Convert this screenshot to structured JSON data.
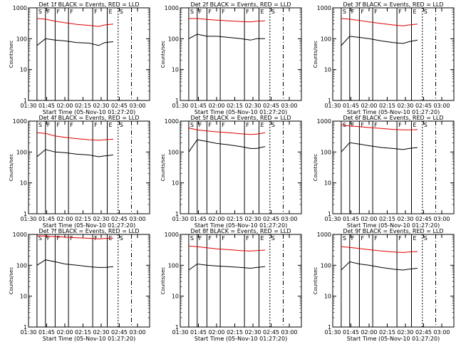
{
  "figure": {
    "x_axis_label": "Start Time (05-Nov-10 01:27:20)",
    "y_axis_label": "Counts/sec",
    "x_tick_labels": [
      "01:30",
      "01:45",
      "02:00",
      "02:15",
      "02:30",
      "02:45",
      "03:00"
    ],
    "y_tick_labels": [
      "1",
      "10",
      "100",
      "1000"
    ],
    "colors": {
      "events": "#000000",
      "lld": "#e00000",
      "axes": "#000000",
      "background": "#ffffff"
    }
  },
  "chart_data": [
    {
      "type": "line",
      "title": "Det 1f BLACK = Events, RED = LLD",
      "xlabel": "Start Time (05-Nov-10 01:27:20)",
      "ylabel": "Counts/sec",
      "xlim": [
        "01:30",
        "03:10"
      ],
      "ylim": [
        1,
        1000
      ],
      "y_scale": "log",
      "x": [
        "01:37",
        "01:44",
        "01:52",
        "02:00",
        "02:10",
        "02:20",
        "02:28",
        "02:33",
        "02:40"
      ],
      "series": [
        {
          "name": "Events",
          "values": [
            60,
            100,
            90,
            85,
            75,
            72,
            60,
            75,
            80
          ]
        },
        {
          "name": "LLD",
          "values": [
            450,
            430,
            370,
            330,
            290,
            270,
            250,
            280,
            300
          ]
        }
      ],
      "markers": [
        "S",
        "F",
        "F",
        "F",
        "F",
        "E"
      ]
    },
    {
      "type": "line",
      "title": "Det 2f BLACK = Events, RED = LLD",
      "xlabel": "Start Time (05-Nov-10 01:27:20)",
      "ylabel": "Counts/sec",
      "xlim": [
        "01:30",
        "03:10"
      ],
      "ylim": [
        1,
        1000
      ],
      "y_scale": "log",
      "x": [
        "01:37",
        "01:44",
        "01:52",
        "02:00",
        "02:10",
        "02:20",
        "02:28",
        "02:33",
        "02:40"
      ],
      "series": [
        {
          "name": "Events",
          "values": [
            100,
            140,
            120,
            120,
            110,
            100,
            90,
            100,
            100
          ]
        },
        {
          "name": "LLD",
          "values": [
            450,
            450,
            420,
            400,
            380,
            360,
            350,
            370,
            380
          ]
        }
      ],
      "markers": [
        "S",
        "F",
        "F",
        "F",
        "F",
        "E"
      ]
    },
    {
      "type": "line",
      "title": "Det 3f BLACK = Events, RED = LLD",
      "xlabel": "Start Time (05-Nov-10 01:27:20)",
      "ylabel": "Counts/sec",
      "xlim": [
        "01:30",
        "03:10"
      ],
      "ylim": [
        1,
        1000
      ],
      "y_scale": "log",
      "x": [
        "01:37",
        "01:44",
        "01:52",
        "02:00",
        "02:10",
        "02:20",
        "02:28",
        "02:33",
        "02:40"
      ],
      "series": [
        {
          "name": "Events",
          "values": [
            60,
            120,
            110,
            100,
            85,
            75,
            70,
            80,
            90
          ]
        },
        {
          "name": "LLD",
          "values": [
            450,
            430,
            390,
            350,
            310,
            280,
            260,
            280,
            300
          ]
        }
      ],
      "markers": [
        "S",
        "F",
        "F",
        "F",
        "F",
        "E"
      ]
    },
    {
      "type": "line",
      "title": "Det 4f BLACK = Events, RED = LLD",
      "xlabel": "Start Time (05-Nov-10 01:27:20)",
      "ylabel": "Counts/sec",
      "xlim": [
        "01:30",
        "03:10"
      ],
      "ylim": [
        1,
        1000
      ],
      "y_scale": "log",
      "x": [
        "01:37",
        "01:44",
        "01:52",
        "02:00",
        "02:10",
        "02:20",
        "02:28",
        "02:33",
        "02:40"
      ],
      "series": [
        {
          "name": "Events",
          "values": [
            70,
            120,
            100,
            95,
            85,
            80,
            70,
            75,
            80
          ]
        },
        {
          "name": "LLD",
          "values": [
            420,
            400,
            330,
            300,
            270,
            250,
            240,
            250,
            260
          ]
        }
      ],
      "markers": [
        "S",
        "F",
        "F",
        "F",
        "F",
        "E"
      ]
    },
    {
      "type": "line",
      "title": "Det 5f BLACK = Events, RED = LLD",
      "xlabel": "Start Time (05-Nov-10 01:27:20)",
      "ylabel": "Counts/sec",
      "xlim": [
        "01:30",
        "03:10"
      ],
      "ylim": [
        1,
        1000
      ],
      "y_scale": "log",
      "x": [
        "01:37",
        "01:44",
        "01:52",
        "02:00",
        "02:10",
        "02:20",
        "02:28",
        "02:33",
        "02:40"
      ],
      "series": [
        {
          "name": "Events",
          "values": [
            100,
            250,
            220,
            190,
            170,
            150,
            130,
            130,
            150
          ]
        },
        {
          "name": "LLD",
          "values": [
            600,
            520,
            480,
            450,
            420,
            390,
            370,
            380,
            420
          ]
        }
      ],
      "markers": [
        "S",
        "F",
        "F",
        "F",
        "F",
        "E"
      ]
    },
    {
      "type": "line",
      "title": "Det 6f BLACK = Events, RED = LLD",
      "xlabel": "Start Time (05-Nov-10 01:27:20)",
      "ylabel": "Counts/sec",
      "xlim": [
        "01:30",
        "03:10"
      ],
      "ylim": [
        1,
        1000
      ],
      "y_scale": "log",
      "x": [
        "01:37",
        "01:44",
        "01:52",
        "02:00",
        "02:10",
        "02:20",
        "02:28",
        "02:33",
        "02:40"
      ],
      "series": [
        {
          "name": "Events",
          "values": [
            100,
            200,
            180,
            160,
            140,
            130,
            120,
            130,
            140
          ]
        },
        {
          "name": "LLD",
          "values": [
            750,
            700,
            660,
            620,
            580,
            540,
            520,
            520,
            530
          ]
        }
      ],
      "markers": [
        "S",
        "F",
        "F",
        "F",
        "F",
        "E"
      ]
    },
    {
      "type": "line",
      "title": "Det 7f BLACK = Events, RED = LLD",
      "xlabel": "Start Time (05-Nov-10 01:27:20)",
      "ylabel": "Counts/sec",
      "xlim": [
        "01:30",
        "03:10"
      ],
      "ylim": [
        1,
        1000
      ],
      "y_scale": "log",
      "x": [
        "01:37",
        "01:44",
        "01:52",
        "02:00",
        "02:10",
        "02:20",
        "02:28",
        "02:33",
        "02:40"
      ],
      "series": [
        {
          "name": "Events",
          "values": [
            100,
            150,
            130,
            110,
            100,
            90,
            85,
            85,
            90
          ]
        },
        {
          "name": "LLD",
          "values": [
            900,
            880,
            850,
            820,
            780,
            750,
            720,
            740,
            760
          ]
        }
      ],
      "markers": [
        "S",
        "F",
        "F",
        "F",
        "F",
        "E"
      ]
    },
    {
      "type": "line",
      "title": "Det 8f BLACK = Events, RED = LLD",
      "xlabel": "Start Time (05-Nov-10 01:27:20)",
      "ylabel": "Counts/sec",
      "xlim": [
        "01:30",
        "03:10"
      ],
      "ylim": [
        1,
        1000
      ],
      "y_scale": "log",
      "x": [
        "01:37",
        "01:44",
        "01:52",
        "02:00",
        "02:10",
        "02:20",
        "02:28",
        "02:33",
        "02:40"
      ],
      "series": [
        {
          "name": "Events",
          "values": [
            70,
            110,
            100,
            95,
            90,
            85,
            80,
            85,
            90
          ]
        },
        {
          "name": "LLD",
          "values": [
            420,
            400,
            370,
            340,
            320,
            300,
            290,
            300,
            310
          ]
        }
      ],
      "markers": [
        "S",
        "F",
        "F",
        "F",
        "F",
        "E"
      ]
    },
    {
      "type": "line",
      "title": "Det 9f BLACK = Events, RED = LLD",
      "xlabel": "Start Time (05-Nov-10 01:27:20)",
      "ylabel": "Counts/sec",
      "xlim": [
        "01:30",
        "03:10"
      ],
      "ylim": [
        1,
        1000
      ],
      "y_scale": "log",
      "x": [
        "01:37",
        "01:44",
        "01:52",
        "02:00",
        "02:10",
        "02:20",
        "02:28",
        "02:33",
        "02:40"
      ],
      "series": [
        {
          "name": "Events",
          "values": [
            70,
            130,
            110,
            100,
            85,
            75,
            70,
            75,
            80
          ]
        },
        {
          "name": "LLD",
          "values": [
            400,
            380,
            350,
            320,
            290,
            270,
            260,
            270,
            280
          ]
        }
      ],
      "markers": [
        "S",
        "F",
        "F",
        "F",
        "F",
        "E"
      ]
    }
  ]
}
